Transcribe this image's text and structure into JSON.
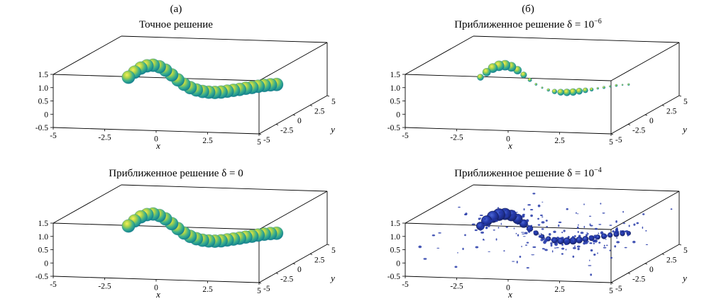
{
  "figure_labels": {
    "left": "(а)",
    "right": "(б)"
  },
  "chart_data": {
    "type": "scatter",
    "projection": "3d",
    "axes": {
      "x": {
        "label": "x",
        "range": [
          -5,
          5
        ],
        "tick_values": [
          -5,
          -2.5,
          0,
          2.5,
          5
        ],
        "tick_labels": [
          "-5",
          "-2.5",
          "0",
          "2.5",
          "5"
        ]
      },
      "y": {
        "label": "y",
        "range": [
          -5,
          5
        ],
        "tick_values": [
          -5,
          -2.5,
          0,
          2.5,
          5
        ],
        "tick_labels": [
          "-5",
          "-2.5",
          "0",
          "2.5",
          "5"
        ]
      },
      "z": {
        "label": "",
        "range": [
          -0.5,
          1.5
        ],
        "tick_values": [
          -0.5,
          0,
          0.5,
          1.0,
          1.5
        ],
        "tick_labels": [
          "-0.5",
          "0",
          "0.5",
          "1.0",
          "1.5"
        ]
      }
    },
    "colors": {
      "axis": "#000000",
      "sphere_core": "#f8ef58",
      "sphere_mid": "#a8d24a",
      "sphere_teal": "#3bb08d",
      "sphere_rim": "#188991",
      "sphere_deep": "#0e6f80",
      "noise_light": "#4a66d6",
      "noise_blue": "#2438a8",
      "noise_dark": "#141f63"
    },
    "curve": [
      [
        -3.0,
        0,
        0.72
      ],
      [
        -2.7,
        0,
        0.92
      ],
      [
        -2.4,
        0,
        1.08
      ],
      [
        -2.1,
        0,
        1.17
      ],
      [
        -1.8,
        0,
        1.2
      ],
      [
        -1.5,
        0,
        1.15
      ],
      [
        -1.2,
        0,
        1.03
      ],
      [
        -0.9,
        0,
        0.86
      ],
      [
        -0.6,
        0,
        0.68
      ],
      [
        -0.3,
        0,
        0.52
      ],
      [
        0.0,
        0,
        0.4
      ],
      [
        0.3,
        0,
        0.32
      ],
      [
        0.6,
        0,
        0.27
      ],
      [
        0.9,
        0,
        0.25
      ],
      [
        1.2,
        0,
        0.25
      ],
      [
        1.5,
        0,
        0.27
      ],
      [
        1.8,
        0,
        0.31
      ],
      [
        2.1,
        0,
        0.35
      ],
      [
        2.4,
        0,
        0.39
      ],
      [
        2.7,
        0,
        0.44
      ],
      [
        3.0,
        0,
        0.48
      ],
      [
        3.3,
        0,
        0.53
      ],
      [
        3.6,
        0,
        0.57
      ],
      [
        3.9,
        0,
        0.6
      ],
      [
        4.2,
        0,
        0.62
      ]
    ],
    "panels": [
      {
        "key": "exact",
        "title": "Точное решение",
        "exp": "",
        "style": "spheres",
        "sizes": [
          1,
          1,
          1,
          1,
          1,
          1,
          1,
          1,
          1,
          1,
          1,
          1,
          1,
          1,
          1,
          1,
          1,
          1,
          1,
          1,
          1,
          1,
          1,
          1,
          1
        ]
      },
      {
        "key": "delta-1e-6",
        "title": "Приближенное решение δ = 10",
        "exp": "−6",
        "style": "spheres",
        "sizes": [
          0.5,
          0.62,
          0.72,
          0.78,
          0.78,
          0.72,
          0.62,
          0.48,
          0.3,
          0.18,
          0.14,
          0.22,
          0.38,
          0.5,
          0.55,
          0.55,
          0.5,
          0.4,
          0.28,
          0.16,
          0.2,
          0.14,
          0.18,
          0.12,
          0.16
        ]
      },
      {
        "key": "delta-0",
        "title": "Приближенное решение δ = 0",
        "exp": "",
        "style": "spheres",
        "sizes": [
          1,
          1,
          1,
          1,
          1,
          1,
          1,
          1,
          1,
          1,
          1,
          1,
          1,
          1,
          1,
          1,
          1,
          1,
          1,
          1,
          1,
          1,
          1,
          1,
          1
        ]
      },
      {
        "key": "delta-1e-4",
        "title": "Приближенное решение δ = 10",
        "exp": "−4",
        "style": "noise",
        "sizes": [
          0.7,
          0.9,
          1,
          1.05,
          1,
          0.95,
          0.85,
          0.7,
          0.52,
          0.4,
          0.35,
          0.4,
          0.5,
          0.55,
          0.6,
          0.6,
          0.55,
          0.5,
          0.45,
          0.4,
          0.45,
          0.4,
          0.45,
          0.4,
          0.35
        ],
        "noise": {
          "speckle_count": 170,
          "seed": 13
        }
      }
    ]
  }
}
